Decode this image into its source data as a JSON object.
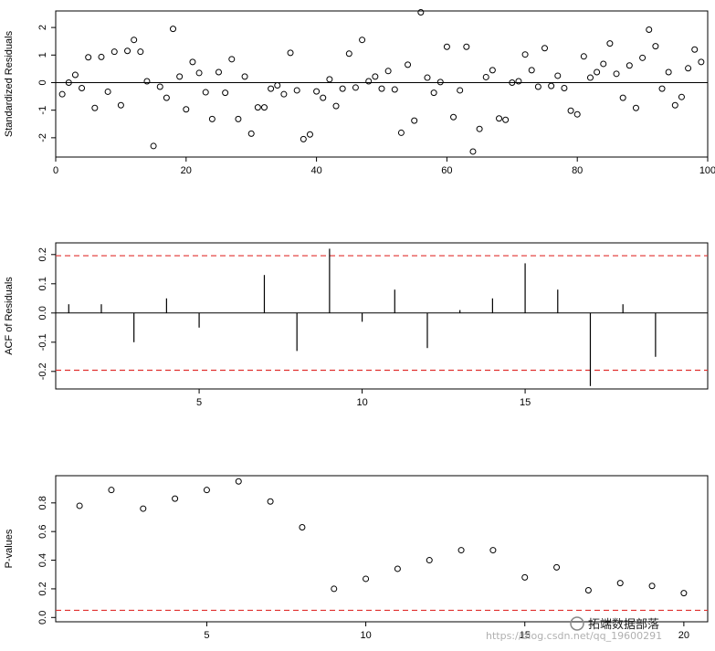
{
  "chart_data": [
    {
      "type": "scatter",
      "ylabel": "Standardized Residuals",
      "xlim": [
        0,
        100
      ],
      "ylim": [
        -2.7,
        2.6
      ],
      "xticks": [
        "0",
        "20",
        "40",
        "60",
        "80",
        "100"
      ],
      "yticks": [
        "-2",
        "-1",
        "0",
        "1",
        "2"
      ],
      "reference_line": 0,
      "x": [
        1,
        2,
        3,
        4,
        5,
        6,
        7,
        8,
        9,
        10,
        11,
        12,
        13,
        14,
        15,
        16,
        17,
        18,
        19,
        20,
        21,
        22,
        23,
        24,
        25,
        26,
        27,
        28,
        29,
        30,
        31,
        32,
        33,
        34,
        35,
        36,
        37,
        38,
        39,
        40,
        41,
        42,
        43,
        44,
        45,
        46,
        47,
        48,
        49,
        50,
        51,
        52,
        53,
        54,
        55,
        56,
        57,
        58,
        59,
        60,
        61,
        62,
        63,
        64,
        65,
        66,
        67,
        68,
        69,
        70,
        71,
        72,
        73,
        74,
        75,
        76,
        77,
        78,
        79,
        80,
        81,
        82,
        83,
        84,
        85,
        86,
        87,
        88,
        89,
        90,
        91,
        92,
        93,
        94,
        95,
        96,
        97,
        98,
        99
      ],
      "values": [
        -0.42,
        0.0,
        0.28,
        -0.2,
        0.92,
        -0.92,
        0.93,
        -0.33,
        1.12,
        -0.82,
        1.15,
        1.55,
        1.12,
        0.05,
        -2.3,
        -0.15,
        -0.55,
        1.95,
        0.22,
        -0.97,
        0.75,
        0.35,
        -0.35,
        -1.32,
        0.38,
        -0.37,
        0.85,
        -1.32,
        0.22,
        -1.85,
        -0.9,
        -0.9,
        -0.22,
        -0.1,
        -0.42,
        1.08,
        -0.28,
        -2.05,
        -1.88,
        -0.32,
        -0.55,
        0.12,
        -0.85,
        -0.22,
        1.05,
        -0.18,
        1.55,
        0.05,
        0.22,
        -0.22,
        0.42,
        -0.25,
        -1.82,
        0.65,
        -1.38,
        2.55,
        0.18,
        -0.37,
        0.02,
        1.3,
        -1.25,
        -0.28,
        1.3,
        -2.5,
        -1.68,
        0.2,
        0.45,
        -1.3,
        -1.35,
        0.0,
        0.05,
        1.02,
        0.45,
        -0.15,
        1.25,
        -0.12,
        0.25,
        -0.2,
        -1.02,
        -1.15,
        0.95,
        0.18,
        0.38,
        0.68,
        1.42,
        0.32,
        -0.55,
        0.62,
        -0.92,
        0.9,
        1.92,
        1.32,
        -0.22,
        0.38,
        -0.82,
        -0.52,
        0.52,
        1.2,
        0.75
      ]
    },
    {
      "type": "bar",
      "ylabel": "ACF of Residuals",
      "xlim": [
        0.6,
        20.6
      ],
      "ylim": [
        -0.26,
        0.24
      ],
      "xticks": [
        "5",
        "10",
        "15"
      ],
      "yticks": [
        "-0.2",
        "-0.1",
        "0.0",
        "0.1",
        "0.2"
      ],
      "reference_line": 0,
      "confidence_bounds": [
        -0.196,
        0.196
      ],
      "lags": [
        1,
        2,
        3,
        4,
        5,
        6,
        7,
        8,
        9,
        10,
        11,
        12,
        13,
        14,
        15,
        16,
        17,
        18,
        19,
        20
      ],
      "values": [
        0.03,
        0.03,
        -0.1,
        0.05,
        -0.05,
        0.0,
        0.13,
        -0.13,
        0.22,
        -0.03,
        0.08,
        -0.12,
        0.01,
        0.05,
        0.17,
        0.08,
        -0.25,
        0.03,
        -0.15,
        0.0
      ]
    },
    {
      "type": "scatter",
      "ylabel": "P-values",
      "xlim": [
        0.25,
        20.75
      ],
      "ylim": [
        -0.03,
        0.99
      ],
      "xticks": [
        "5",
        "10",
        "15",
        "20"
      ],
      "yticks": [
        "0.0",
        "0.2",
        "0.4",
        "0.6",
        "0.8"
      ],
      "reference_line": 0.05,
      "x": [
        1,
        2,
        3,
        4,
        5,
        6,
        7,
        8,
        9,
        10,
        11,
        12,
        13,
        14,
        15,
        16,
        17,
        18,
        19,
        20
      ],
      "values": [
        0.78,
        0.89,
        0.76,
        0.83,
        0.89,
        0.95,
        0.81,
        0.63,
        0.2,
        0.27,
        0.34,
        0.4,
        0.47,
        0.47,
        0.28,
        0.35,
        0.19,
        0.24,
        0.22,
        0.17
      ]
    }
  ],
  "watermark": {
    "text": "拓端数据部落",
    "url_text": "https://blog.csdn.net/qq_19600291"
  }
}
